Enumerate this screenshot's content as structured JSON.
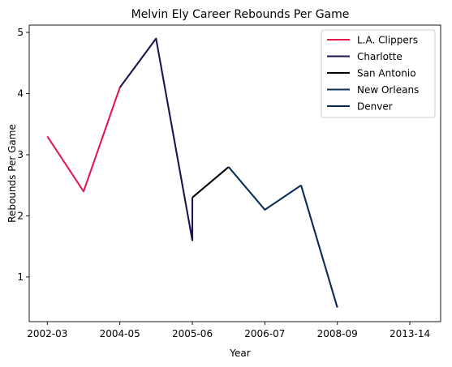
{
  "chart_data": {
    "type": "line",
    "title": "Melvin Ely Career Rebounds Per Game",
    "xlabel": "Year",
    "ylabel": "Rebounds Per Game",
    "x_tick_labels": [
      "2002-03",
      "2004-05",
      "2005-06",
      "2006-07",
      "2008-09",
      "2013-14"
    ],
    "x_tick_positions": [
      0,
      2,
      4,
      6,
      8,
      10
    ],
    "y_ticks": [
      1,
      2,
      3,
      4,
      5
    ],
    "xlim": [
      -0.5,
      10.85
    ],
    "ylim": [
      0.27,
      5.12
    ],
    "legend_position": "top-right",
    "series": [
      {
        "name": "L.A. Clippers",
        "color": "#E31A50",
        "x": [
          0,
          1,
          2
        ],
        "y": [
          3.3,
          2.4,
          4.1
        ]
      },
      {
        "name": "Charlotte",
        "color": "#1F1450",
        "x": [
          2,
          3,
          4,
          4
        ],
        "y": [
          4.1,
          4.9,
          1.6,
          2.3
        ]
      },
      {
        "name": "San Antonio",
        "color": "#000000",
        "x": [
          4,
          5
        ],
        "y": [
          2.3,
          2.8
        ]
      },
      {
        "name": "New Orleans",
        "color": "#0C2F55",
        "x": [
          5,
          6,
          7
        ],
        "y": [
          2.8,
          2.1,
          2.5
        ]
      },
      {
        "name": "Denver",
        "color": "#0A2A56",
        "x": [
          7,
          8
        ],
        "y": [
          2.5,
          0.5
        ]
      }
    ]
  }
}
